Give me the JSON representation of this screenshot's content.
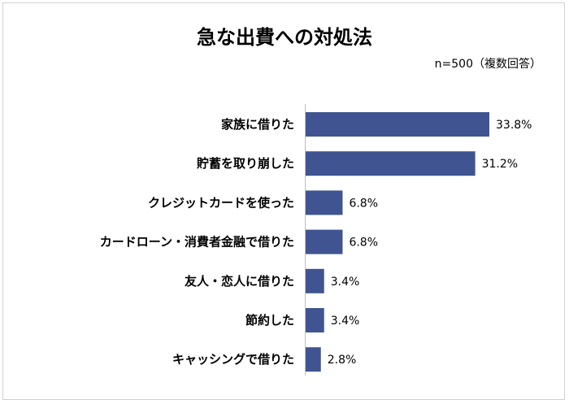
{
  "chart_data": {
    "type": "bar",
    "orientation": "horizontal",
    "title": "急な出費への対処法",
    "subtitle": "n=500（複数回答）",
    "categories": [
      "家族に借りた",
      "貯蓄を取り崩した",
      "クレジットカードを使った",
      "カードローン・消費者金融で借りた",
      "友人・恋人に借りた",
      "節約した",
      "キャッシングで借りた"
    ],
    "values": [
      33.8,
      31.2,
      6.8,
      6.8,
      3.4,
      3.4,
      2.8
    ],
    "value_labels": [
      "33.8%",
      "31.2%",
      "6.8%",
      "6.8%",
      "3.4%",
      "3.4%",
      "2.8%"
    ],
    "unit": "%",
    "xlim": [
      0,
      40
    ],
    "grid": false,
    "legend": "none",
    "bar_color": "#3f5490"
  }
}
